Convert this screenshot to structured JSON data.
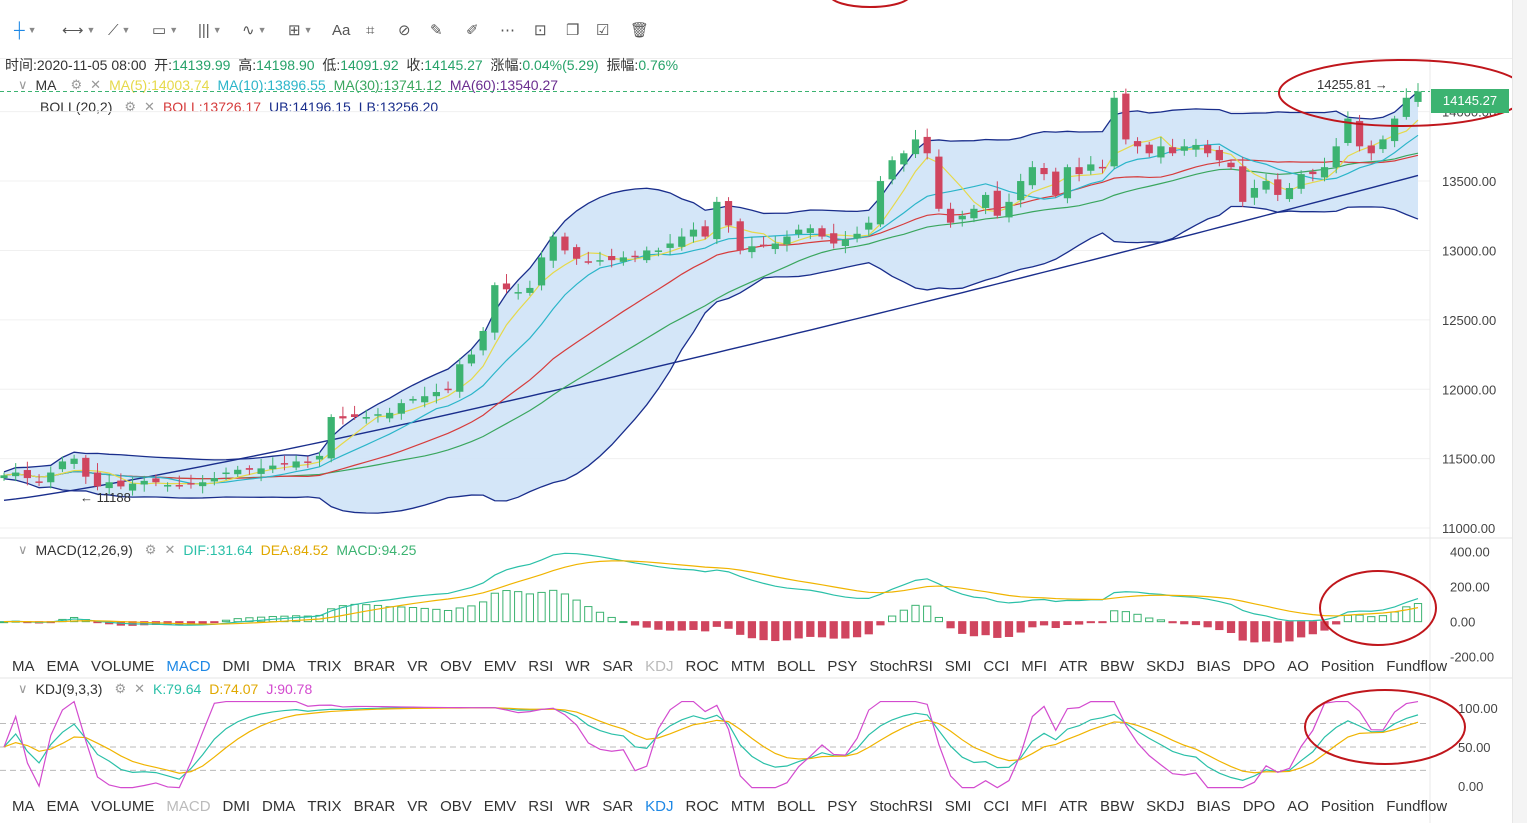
{
  "toolbar": {
    "text_tool": "Aa",
    "icons": [
      "crosshair-icon",
      "horizontal-line-icon",
      "trend-line-icon",
      "rectangle-icon",
      "fib-icon",
      "wave-icon",
      "measure-icon",
      "text-icon",
      "pattern-icon",
      "eraser-icon",
      "pencil-icon",
      "ruler-icon",
      "lock-icon",
      "copy-icon",
      "screenshot-icon",
      "trash-icon"
    ]
  },
  "info": {
    "time_label": "时间:",
    "time": "2020-11-05 08:00",
    "open_label": "开:",
    "open": "14139.99",
    "high_label": "高:",
    "high": "14198.90",
    "low_label": "低:",
    "low": "14091.92",
    "close_label": "收:",
    "close": "14145.27",
    "change_label": "涨幅:",
    "change": "0.04%(5.29)",
    "amp_label": "振幅:",
    "amp": "0.76%"
  },
  "ma_legend": {
    "name": "MA",
    "ma5": "MA(5):14003.74",
    "ma10": "MA(10):13896.55",
    "ma30": "MA(30):13741.12",
    "ma60": "MA(60):13540.27"
  },
  "boll_legend": {
    "name": "BOLL(20,2)",
    "boll": "BOLL:13726.17",
    "ub": "UB:14196.15",
    "lb": "LB:13256.20"
  },
  "macd_legend": {
    "name": "MACD(12,26,9)",
    "dif": "DIF:131.64",
    "dea": "DEA:84.52",
    "macd": "MACD:94.25"
  },
  "kdj_legend": {
    "name": "KDJ(9,3,3)",
    "k": "K:79.64",
    "d": "D:74.07",
    "j": "J:90.78"
  },
  "current_price": "14145.27",
  "annotations": {
    "high_marker": "14255.81 →",
    "low_marker": "← 11188"
  },
  "indicator_tabs": [
    "MA",
    "EMA",
    "VOLUME",
    "MACD",
    "DMI",
    "DMA",
    "TRIX",
    "BRAR",
    "VR",
    "OBV",
    "EMV",
    "RSI",
    "WR",
    "SAR",
    "KDJ",
    "ROC",
    "MTM",
    "BOLL",
    "PSY",
    "StochRSI",
    "SMI",
    "CCI",
    "MFI",
    "ATR",
    "BBW",
    "SKDJ",
    "BIAS",
    "DPO",
    "AO",
    "Position",
    "Fundflow"
  ],
  "tabs_row1_selected": "MACD",
  "tabs_row1_dim": "KDJ",
  "tabs_row2_selected": "KDJ",
  "tabs_row2_dim": "MACD",
  "colors": {
    "up": "#3cb371",
    "down": "#d0455f",
    "ma5": "#e6d94a",
    "ma10": "#2bb5c9",
    "ma30": "#3aa65e",
    "ma60": "#6a2d8f",
    "boll": "#d63c3c",
    "band": "#1a2e8c",
    "band_fill": "#cfe3f7",
    "dif": "#2bc0a8",
    "dea": "#f0b400",
    "j": "#d34bcf",
    "circle": "#c0161c"
  },
  "chart_data": [
    {
      "type": "candlestick",
      "title": "",
      "y_ticks": [
        "14000.00",
        "13500.00",
        "13000.00",
        "12500.00",
        "12000.00",
        "11500.00",
        "11000.00"
      ],
      "ylim": [
        10950,
        14300
      ],
      "close": [
        11380,
        11400,
        11360,
        11330,
        11400,
        11480,
        11500,
        11370,
        11300,
        11330,
        11300,
        11320,
        11340,
        11330,
        11310,
        11300,
        11320,
        11330,
        11360,
        11400,
        11420,
        11420,
        11430,
        11450,
        11460,
        11480,
        11470,
        11520,
        11800,
        11790,
        11800,
        11800,
        11820,
        11830,
        11900,
        11930,
        11950,
        11980,
        12000,
        12180,
        12250,
        12420,
        12750,
        12720,
        12700,
        12730,
        12950,
        13100,
        13000,
        12940,
        12920,
        12930,
        12930,
        12950,
        12960,
        13000,
        13000,
        13050,
        13100,
        13150,
        13100,
        13350,
        13180,
        13000,
        13030,
        13040,
        13050,
        13100,
        13150,
        13160,
        13100,
        13050,
        13080,
        13120,
        13200,
        13500,
        13650,
        13700,
        13800,
        13700,
        13300,
        13200,
        13250,
        13300,
        13400,
        13250,
        13350,
        13500,
        13600,
        13550,
        13400,
        13600,
        13550,
        13620,
        13600,
        14100,
        13800,
        13750,
        13700,
        13750,
        13700,
        13750,
        13760,
        13700,
        13650,
        13600,
        13350,
        13450,
        13500,
        13400,
        13450,
        13550,
        13550,
        13600,
        13750,
        13950,
        13750,
        13700,
        13800,
        13950,
        14100,
        14145
      ],
      "ma60_last": 13540.27,
      "boll_ub_last": 14196.15,
      "boll_mid_last": 13726.17,
      "boll_lb_last": 13256.2,
      "current": 14145.27,
      "high_marker": 14255.81,
      "low_marker": 11188
    },
    {
      "type": "bar",
      "name": "MACD(12,26,9)",
      "y_ticks": [
        "400.00",
        "200.00",
        "0.00",
        "-200.00"
      ],
      "ylim": [
        -230,
        420
      ],
      "dif_last": 131.64,
      "dea_last": 84.52,
      "macd_last": 94.25
    },
    {
      "type": "line",
      "name": "KDJ(9,3,3)",
      "y_ticks": [
        "100.00",
        "50.00",
        "0.00"
      ],
      "ylim": [
        -5,
        110
      ],
      "k_last": 79.64,
      "d_last": 74.07,
      "j_last": 90.78
    }
  ]
}
